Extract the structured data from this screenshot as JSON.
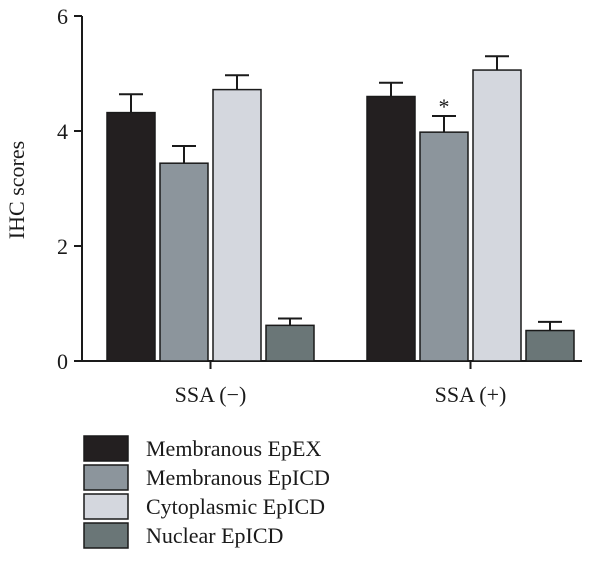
{
  "chart_data": {
    "type": "bar",
    "title": "",
    "xlabel": "",
    "ylabel": "IHC scores",
    "ylim": [
      0,
      6
    ],
    "yticks": [
      0,
      2,
      4,
      6
    ],
    "categories": [
      "SSA (−)",
      "SSA (+)"
    ],
    "legend_position": "bottom",
    "grid": false,
    "series": [
      {
        "name": "Membranous EpEX",
        "values": [
          4.32,
          4.6
        ],
        "errors": [
          0.32,
          0.24
        ],
        "color": "#231f20"
      },
      {
        "name": "Membranous EpICD",
        "values": [
          3.44,
          3.98
        ],
        "errors": [
          0.3,
          0.28
        ],
        "color": "#8c959c"
      },
      {
        "name": "Cytoplasmic EpICD",
        "values": [
          4.72,
          5.06
        ],
        "errors": [
          0.25,
          0.24
        ],
        "color": "#d4d7de"
      },
      {
        "name": "Nuclear EpICD",
        "values": [
          0.62,
          0.53
        ],
        "errors": [
          0.12,
          0.15
        ],
        "color": "#6a7677"
      }
    ],
    "annotations": [
      {
        "text": "*",
        "category": 1,
        "series": 1
      }
    ]
  }
}
